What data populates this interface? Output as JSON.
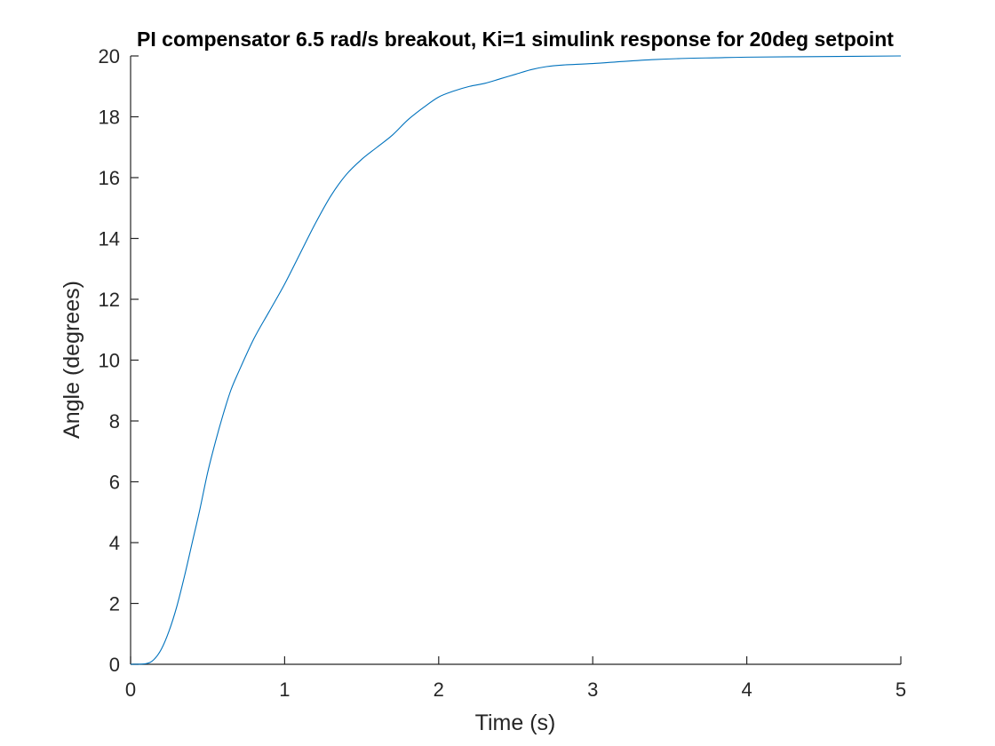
{
  "chart_data": {
    "type": "line",
    "title": "PI compensator 6.5 rad/s breakout, Ki=1 simulink response for 20deg setpoint",
    "xlabel": "Time (s)",
    "ylabel": "Angle (degrees)",
    "xlim": [
      0,
      5
    ],
    "ylim": [
      0,
      20
    ],
    "xticks": [
      0,
      1,
      2,
      3,
      4,
      5
    ],
    "yticks": [
      0,
      2,
      4,
      6,
      8,
      10,
      12,
      14,
      16,
      18,
      20
    ],
    "xtick_labels": [
      "0",
      "1",
      "2",
      "3",
      "4",
      "5"
    ],
    "ytick_labels": [
      "0",
      "2",
      "4",
      "6",
      "8",
      "10",
      "12",
      "14",
      "16",
      "18",
      "20"
    ],
    "grid": false,
    "colors": {
      "line": "#0072BD",
      "axes": "#262626"
    },
    "series": [
      {
        "x": [
          0,
          0.1,
          0.15,
          0.2,
          0.25,
          0.3,
          0.35,
          0.4,
          0.45,
          0.5,
          0.55,
          0.6,
          0.65,
          0.7,
          0.8,
          0.9,
          1.0,
          1.1,
          1.2,
          1.3,
          1.4,
          1.5,
          1.6,
          1.7,
          1.8,
          1.9,
          2.0,
          2.1,
          2.2,
          2.3,
          2.4,
          2.5,
          2.6,
          2.7,
          2.8,
          3.0,
          3.2,
          3.4,
          3.6,
          3.8,
          4.0,
          4.5,
          5.0
        ],
        "y": [
          0,
          0.02,
          0.15,
          0.5,
          1.1,
          1.9,
          2.9,
          4.0,
          5.1,
          6.3,
          7.3,
          8.2,
          9.0,
          9.6,
          10.7,
          11.6,
          12.5,
          13.5,
          14.5,
          15.4,
          16.1,
          16.6,
          17.0,
          17.4,
          17.9,
          18.3,
          18.65,
          18.85,
          19.0,
          19.1,
          19.25,
          19.4,
          19.55,
          19.65,
          19.7,
          19.75,
          19.82,
          19.88,
          19.92,
          19.94,
          19.96,
          19.98,
          20.0
        ]
      }
    ]
  }
}
